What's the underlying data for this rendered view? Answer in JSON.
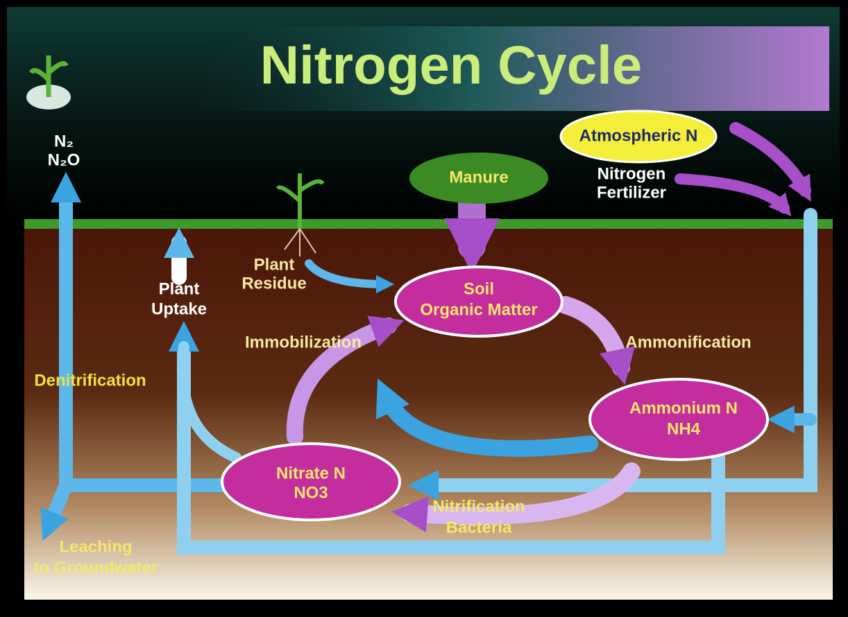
{
  "title": "Nitrogen Cycle",
  "gases": [
    "N₂",
    "N₂O"
  ],
  "sources": {
    "atmospheric": "Atmospheric N",
    "fertilizer": [
      "Nitrogen",
      "Fertilizer"
    ],
    "manure": "Manure"
  },
  "nodes": [
    {
      "label": [
        "Soil",
        "Organic Matter"
      ]
    },
    {
      "label": [
        "Ammonium N",
        "NH4"
      ]
    },
    {
      "label": [
        "Nitrate N",
        "NO3"
      ]
    }
  ],
  "processes": {
    "plant_residue": [
      "Plant",
      "Residue"
    ],
    "plant_uptake": [
      "Plant",
      "Uptake"
    ],
    "immobilization": "Immobilization",
    "ammonification": "Ammonification",
    "denitrification": "Denitrification",
    "nitrification": [
      "Nitrification",
      "Bacteria"
    ],
    "leaching": [
      "Leaching",
      "to Groundwater"
    ]
  }
}
